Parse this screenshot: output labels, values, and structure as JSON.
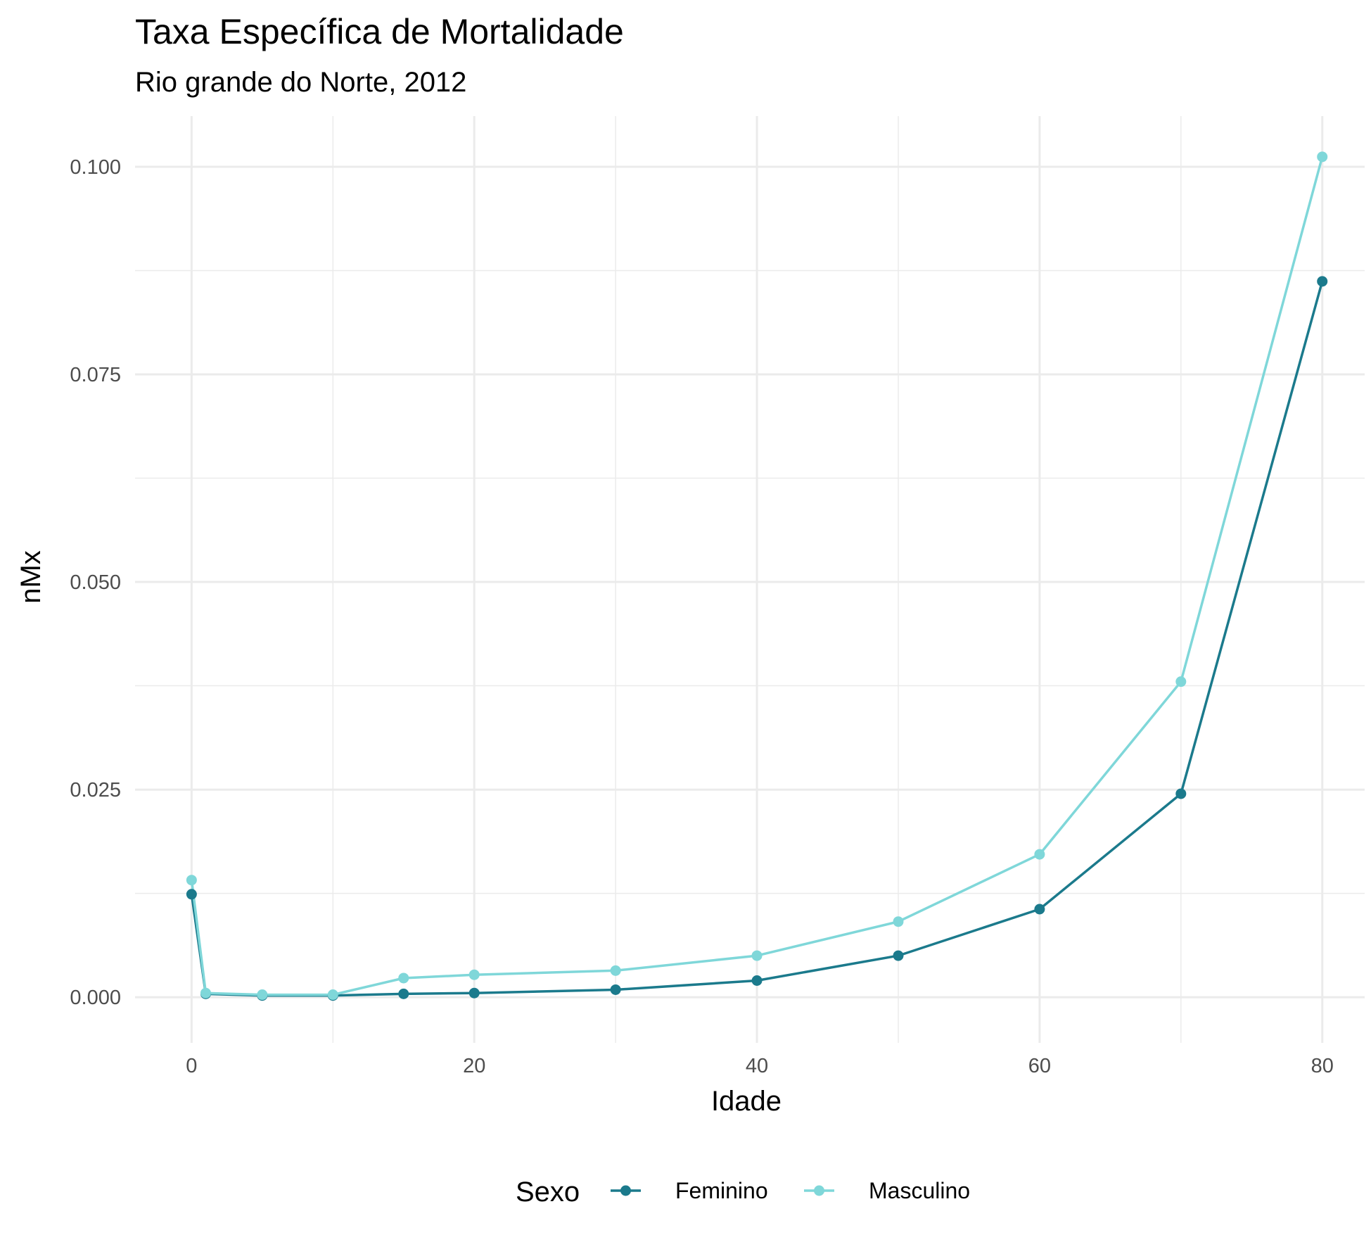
{
  "chart_data": {
    "type": "line",
    "title": "Taxa Específica de Mortalidade",
    "subtitle": "Rio grande do Norte, 2012",
    "xlabel": "Idade",
    "ylabel": "nMx",
    "xlim": [
      -4,
      83
    ],
    "ylim": [
      -0.0055,
      0.1061
    ],
    "x_ticks": [
      0,
      20,
      40,
      60,
      80
    ],
    "x_tick_labels": [
      "0",
      "20",
      "40",
      "60",
      "80"
    ],
    "y_ticks": [
      0,
      0.025,
      0.05,
      0.075,
      0.1
    ],
    "y_tick_labels": [
      "0.000",
      "0.025",
      "0.050",
      "0.075",
      "0.100"
    ],
    "grid": true,
    "legend": {
      "title": "Sexo",
      "position": "bottom"
    },
    "x": [
      0,
      1,
      5,
      10,
      15,
      20,
      30,
      40,
      50,
      60,
      70,
      80
    ],
    "series": [
      {
        "name": "Feminino",
        "color": "#1b7a8c",
        "values": [
          0.0124,
          0.0004,
          0.0002,
          0.0002,
          0.0004,
          0.0005,
          0.0009,
          0.002,
          0.005,
          0.0106,
          0.0245,
          0.0862
        ]
      },
      {
        "name": "Masculino",
        "color": "#7fd7d9",
        "values": [
          0.0141,
          0.0005,
          0.0003,
          0.0003,
          0.0023,
          0.0027,
          0.0032,
          0.005,
          0.0091,
          0.0172,
          0.038,
          0.1012
        ]
      }
    ]
  }
}
